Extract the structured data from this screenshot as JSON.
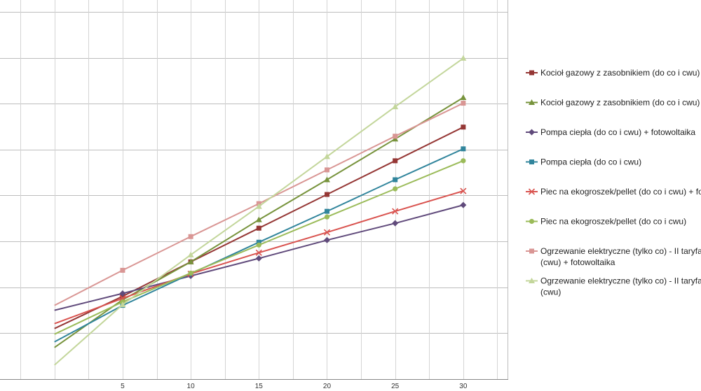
{
  "chart_data": {
    "type": "line",
    "title": "",
    "xlabel": "",
    "ylabel": "",
    "x": [
      0,
      5,
      10,
      15,
      20,
      25,
      30
    ],
    "x_tick_labels": [
      "5",
      "10",
      "15",
      "20",
      "25",
      "30"
    ],
    "xlim": [
      -4,
      33.3
    ],
    "ylim": [
      0,
      540
    ],
    "y_grid_step": 65.4,
    "grid": true,
    "legend_position": "right",
    "series": [
      {
        "name": "Kocioł gazowy z zasobnikiem (do co i cwu) + fotowoltaika",
        "legend_lines": [
          "Kocioł gazowy z zasobnikiem (do co i cwu) + fotowoltaika"
        ],
        "color": "#953735",
        "marker": "square",
        "values": [
          72,
          118,
          167,
          215,
          263,
          311,
          359
        ]
      },
      {
        "name": "Kocioł gazowy z zasobnikiem (do co i cwu)",
        "legend_lines": [
          "Kocioł gazowy z zasobnikiem (do co i cwu)"
        ],
        "color": "#77933C",
        "marker": "triangle",
        "values": [
          45,
          113,
          167,
          227,
          284,
          342,
          401
        ]
      },
      {
        "name": "Pompa ciepła (do co i cwu) + fotowoltaika",
        "legend_lines": [
          "Pompa ciepła (do co i cwu) + fotowoltaika"
        ],
        "color": "#604A7B",
        "marker": "diamond",
        "values": [
          98,
          122,
          147,
          172,
          198,
          222,
          248
        ]
      },
      {
        "name": "Pompa ciepła (do co i cwu)",
        "legend_lines": [
          "Pompa ciepła (do co i cwu)"
        ],
        "color": "#31859C",
        "marker": "square",
        "values": [
          53,
          105,
          150,
          195,
          239,
          284,
          328
        ]
      },
      {
        "name": "Piec na ekogroszek/pellet (do co i cwu) + fotowoltaika",
        "legend_lines": [
          "Piec na ekogroszek/pellet (do co i cwu) + fotowoltaika"
        ],
        "color": "#D9534F",
        "marker": "x",
        "values": [
          79,
          115,
          150,
          180,
          209,
          239,
          268
        ]
      },
      {
        "name": "Piec na ekogroszek/pellet (do co i cwu)",
        "legend_lines": [
          "Piec na ekogroszek/pellet (do co i cwu)"
        ],
        "color": "#9BBB59",
        "marker": "circle",
        "values": [
          64,
          110,
          151,
          191,
          231,
          271,
          311
        ]
      },
      {
        "name": "Ogrzewanie elektryczne (tylko co) - II taryfa Pompa ciepła (cwu) + fotowoltaika",
        "legend_lines": [
          "Ogrzewanie elektryczne (tylko co) - II taryfa Pompa ciepła",
          "(cwu) + fotowoltaika"
        ],
        "color": "#D99694",
        "marker": "square",
        "values": [
          105,
          155,
          203,
          250,
          298,
          346,
          393
        ]
      },
      {
        "name": "Ogrzewanie elektryczne (tylko co) - II taryfa Pompa ciepła (cwu)",
        "legend_lines": [
          "Ogrzewanie elektryczne (tylko co) - II taryfa Pompa ciepła",
          "(cwu)"
        ],
        "color": "#C3D69B",
        "marker": "triangle",
        "values": [
          20,
          106,
          177,
          246,
          317,
          388,
          457
        ]
      }
    ]
  }
}
